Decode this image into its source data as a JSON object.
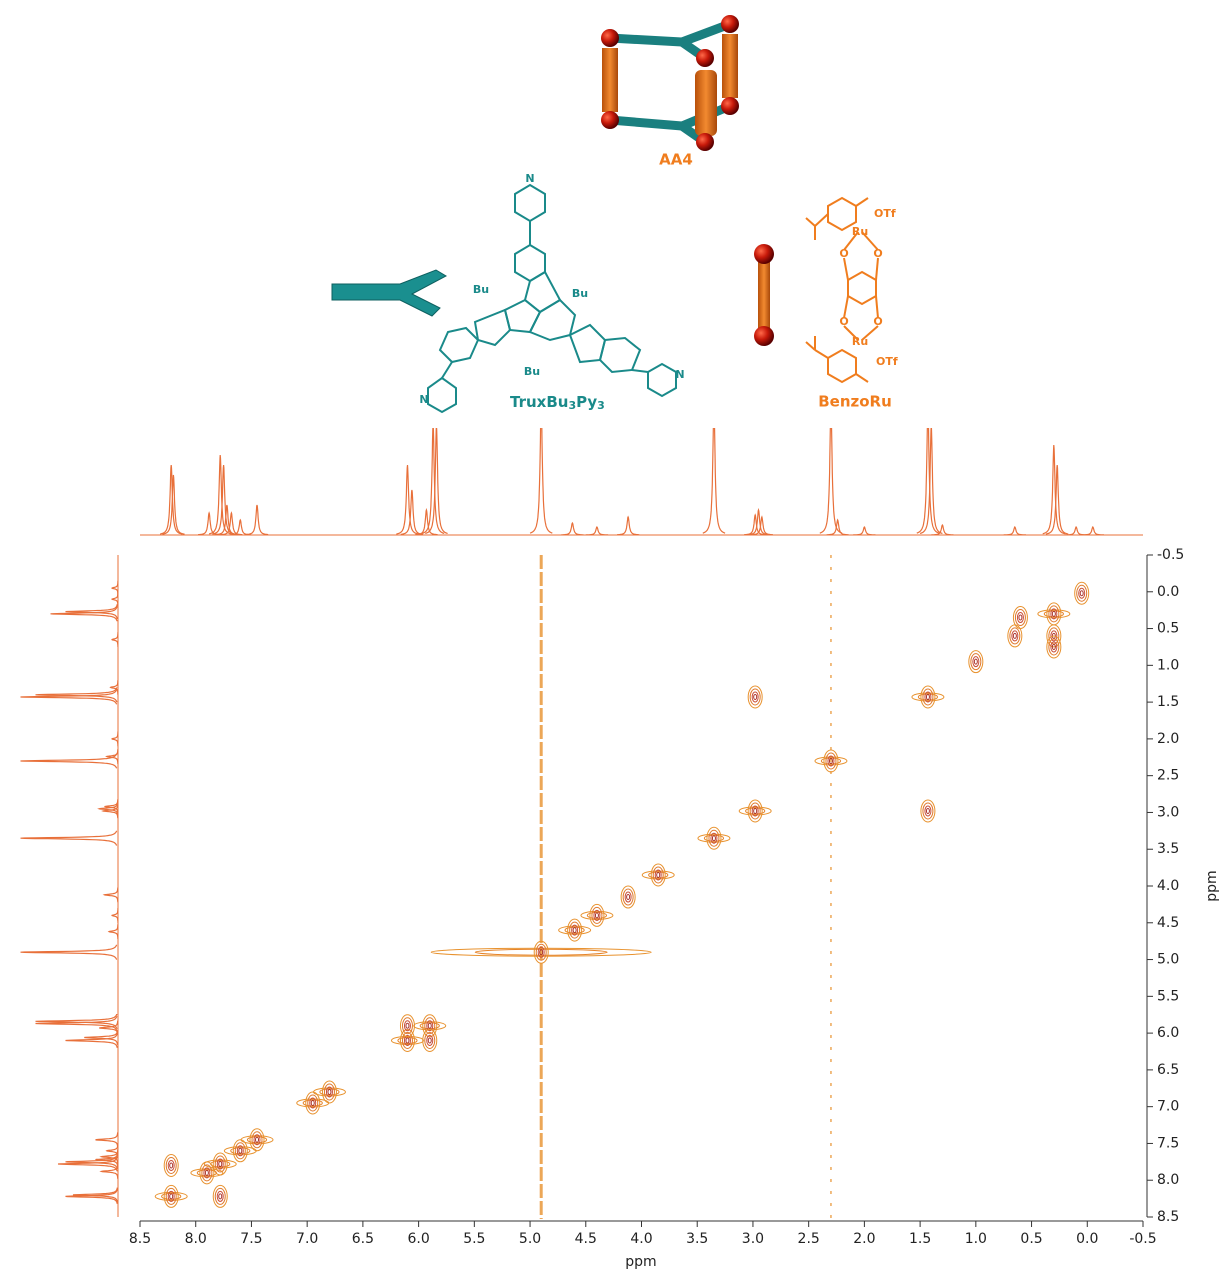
{
  "structures": {
    "cage": {
      "label": "AA4"
    },
    "ligand": {
      "name_parts": [
        "TruxBu",
        "3",
        "Py",
        "3"
      ],
      "atoms": [
        "N",
        "N",
        "N",
        "Bu",
        "Bu",
        "Bu"
      ]
    },
    "linker": {
      "name": "BenzoRu",
      "atoms": [
        "Ru",
        "Ru",
        "OTf",
        "OTf",
        "O",
        "O",
        "O",
        "O"
      ]
    }
  },
  "chart_data": {
    "type": "contour",
    "xlabel": "ppm",
    "ylabel": "ppm",
    "xlim": [
      8.5,
      -0.5
    ],
    "ylim": [
      8.5,
      -0.5
    ],
    "xticks": [
      8.5,
      {
        "value": 8,
        "label": "8.0"
      },
      7.5,
      {
        "value": 7,
        "label": "7.0"
      },
      6.5,
      {
        "value": 6,
        "label": "6.0"
      },
      5.5,
      {
        "value": 5,
        "label": "5.0"
      },
      4.5,
      {
        "value": 4,
        "label": "4.0"
      },
      3.5,
      {
        "value": 3,
        "label": "3.0"
      },
      2.5,
      {
        "value": 2,
        "label": "2.0"
      },
      1.5,
      {
        "value": 1,
        "label": "1.0"
      },
      0.5,
      {
        "value": 0,
        "label": "0.0"
      },
      -0.5
    ],
    "yticks": [
      -0.5,
      {
        "value": 0,
        "label": "0.0"
      },
      0.5,
      {
        "value": 1,
        "label": "1.0"
      },
      1.5,
      {
        "value": 2,
        "label": "2.0"
      },
      2.5,
      {
        "value": 3,
        "label": "3.0"
      },
      3.5,
      {
        "value": 4,
        "label": "4.0"
      },
      4.5,
      {
        "value": 5,
        "label": "5.0"
      },
      5.5,
      {
        "value": 6,
        "label": "6.0"
      },
      6.5,
      {
        "value": 7,
        "label": "7.0"
      },
      7.5,
      {
        "value": 8,
        "label": "8.0"
      },
      8.5
    ],
    "color": "#e8922e",
    "peaks": {
      "x": [
        8.22,
        7.78,
        7.9,
        7.6,
        7.45,
        7.78,
        8.22,
        6.95,
        6.8,
        6.1,
        5.9,
        5.9,
        6.1,
        4.9,
        4.6,
        4.4,
        4.12,
        3.85,
        3.35,
        2.98,
        2.98,
        1.43,
        2.3,
        1.43,
        1.0,
        0.65,
        0.6,
        0.3,
        0.3,
        0.3,
        0.05
      ],
      "y": [
        8.22,
        7.78,
        7.9,
        7.6,
        7.45,
        8.22,
        7.8,
        6.95,
        6.8,
        6.1,
        5.9,
        6.1,
        5.9,
        4.9,
        4.6,
        4.4,
        4.15,
        3.85,
        3.35,
        2.98,
        1.43,
        2.98,
        2.3,
        1.43,
        0.95,
        0.6,
        0.35,
        0.3,
        0.6,
        0.75,
        0.02
      ]
    },
    "streaks": [
      4.9,
      2.3
    ],
    "projection": {
      "x": [
        8.22,
        8.2,
        7.88,
        7.78,
        7.75,
        7.72,
        7.68,
        7.6,
        7.45,
        6.1,
        6.06,
        5.93,
        5.87,
        5.84,
        4.9,
        4.62,
        4.4,
        4.12,
        3.35,
        2.98,
        2.95,
        2.92,
        2.3,
        2.24,
        2.0,
        1.43,
        1.4,
        1.3,
        0.65,
        0.3,
        0.27,
        0.1,
        -0.05
      ],
      "heights": [
        70,
        60,
        22,
        80,
        70,
        30,
        22,
        15,
        30,
        70,
        45,
        25,
        110,
        110,
        130,
        12,
        8,
        18,
        130,
        20,
        25,
        18,
        130,
        15,
        8,
        130,
        110,
        10,
        8,
        90,
        70,
        8,
        8
      ]
    }
  }
}
